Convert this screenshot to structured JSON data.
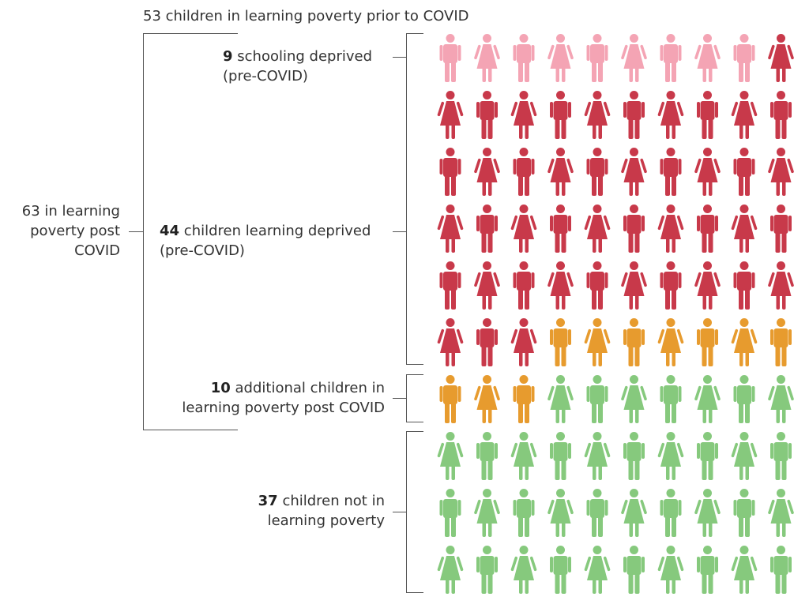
{
  "chart_data": {
    "type": "pictograph",
    "title": "53 children in learning poverty prior to COVID",
    "total": 100,
    "columns": 10,
    "series": [
      {
        "key": "schooling",
        "count": 9,
        "color": "#f4a4b4",
        "bold": "9",
        "text": "schooling deprived",
        "text2": "(pre-COVID)"
      },
      {
        "key": "learning",
        "count": 44,
        "color": "#c8394a",
        "bold": "44",
        "text": "children learning deprived",
        "text2": "(pre-COVID)"
      },
      {
        "key": "additional",
        "count": 10,
        "color": "#e79b2e",
        "bold": "10",
        "text": "additional children in",
        "text2": "learning poverty post COVID"
      },
      {
        "key": "not",
        "count": 37,
        "color": "#86c97d",
        "bold": "37",
        "text": "children not in",
        "text2": "learning poverty"
      }
    ],
    "left_label": {
      "line1": "63 in learning",
      "line2": "poverty post",
      "line3": "COVID"
    }
  }
}
